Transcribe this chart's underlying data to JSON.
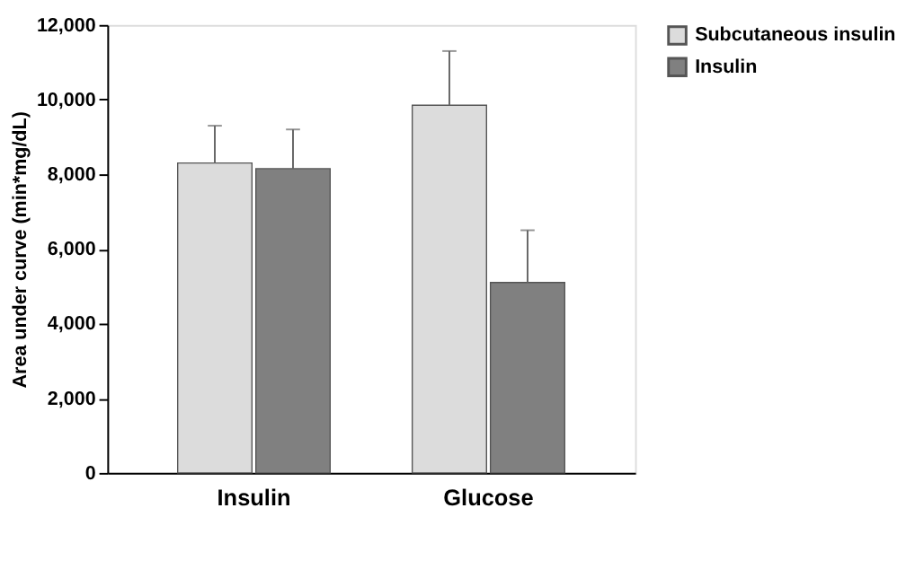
{
  "chart_data": {
    "type": "bar",
    "ylabel": "Area under curve (min*mg/dL)",
    "categories": [
      "Insulin",
      "Glucose"
    ],
    "series": [
      {
        "name": "Subcutaneous insulin",
        "color": "#dcdcdc",
        "values": [
          8300,
          9850
        ],
        "errors": [
          [
            8300,
            9300
          ],
          [
            9850,
            11300
          ]
        ]
      },
      {
        "name": "Insulin",
        "color": "#808080",
        "values": [
          8150,
          5100
        ],
        "errors": [
          [
            8150,
            9200
          ],
          [
            5100,
            6500
          ]
        ]
      }
    ],
    "ylim": [
      0,
      12000
    ],
    "yticks": [
      0,
      {
        "value": 2000,
        "label": "2,000"
      },
      {
        "value": 4000,
        "label": "4,000"
      },
      {
        "value": 6000,
        "label": "6,000"
      },
      {
        "value": 8000,
        "label": "8,000"
      },
      {
        "value": 10000,
        "label": "10,000"
      },
      {
        "value": 12000,
        "label": "12,000"
      }
    ],
    "grid": false,
    "legend": "right"
  }
}
